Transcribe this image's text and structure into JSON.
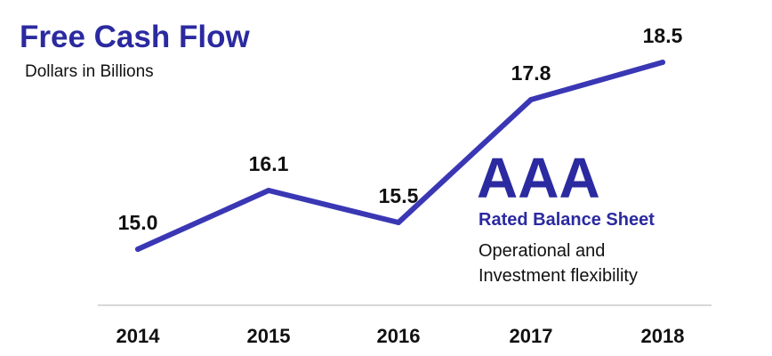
{
  "chart_data": {
    "type": "line",
    "title": "Free Cash Flow",
    "subtitle": "Dollars in Billions",
    "categories": [
      "2014",
      "2015",
      "2016",
      "2017",
      "2018"
    ],
    "series": [
      {
        "values": [
          15.0,
          16.1,
          15.5,
          17.8,
          18.5
        ]
      }
    ],
    "data_labels": [
      "15.0",
      "16.1",
      "15.5",
      "17.8",
      "18.5"
    ],
    "xlabel": "",
    "ylabel": "",
    "ylim": [
      14.0,
      19.0
    ],
    "grid": false,
    "line_color": "#3a37b5"
  },
  "callout": {
    "headline": "AAA",
    "subheading": "Rated Balance Sheet",
    "line1": "Operational and",
    "line2": "Investment flexibility"
  },
  "colors": {
    "accent": "#2b2aa0",
    "text": "#111111",
    "axis": "#cccccc"
  }
}
